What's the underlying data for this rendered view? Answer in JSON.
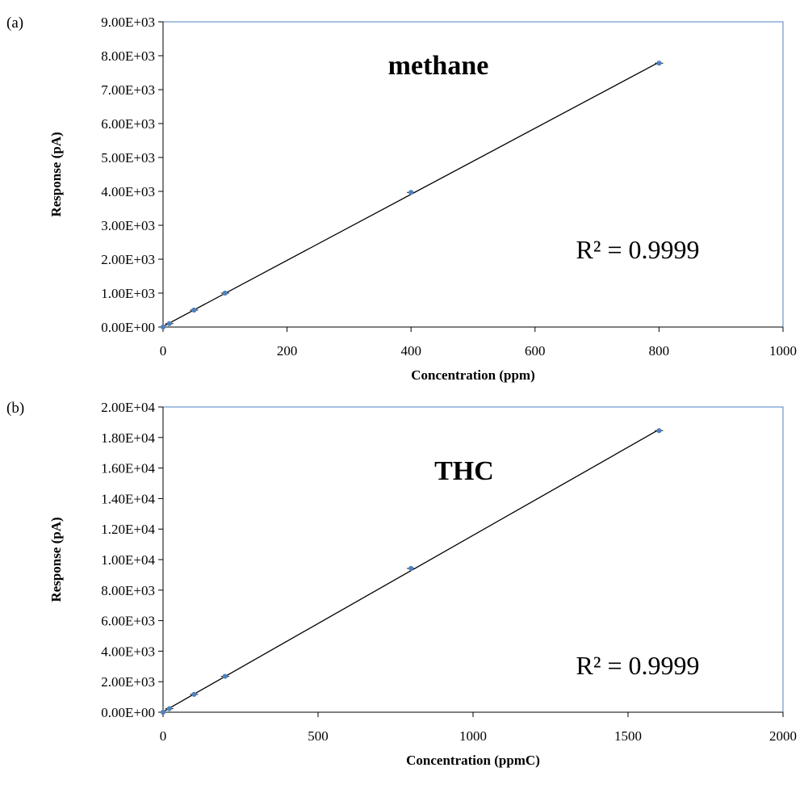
{
  "chart_data": [
    {
      "type": "scatter",
      "panel_label": "(a)",
      "title": "methane",
      "xlabel": "Concentration (ppm)",
      "ylabel": "Response (pA)",
      "xlim": [
        0,
        1000
      ],
      "ylim": [
        0,
        9000
      ],
      "xticks": [
        "0",
        "200",
        "400",
        "600",
        "800",
        "1000"
      ],
      "yticks": [
        "0.00E+00",
        "1.00E+03",
        "2.00E+03",
        "3.00E+03",
        "4.00E+03",
        "5.00E+03",
        "6.00E+03",
        "7.00E+03",
        "8.00E+03",
        "9.00E+03"
      ],
      "grid": false,
      "trendline": "linear",
      "annotation": "R² = 0.9999",
      "series": [
        {
          "x": [
            0,
            10,
            50,
            100,
            400,
            800
          ],
          "y": [
            0,
            100,
            500,
            1000,
            3970,
            7780
          ]
        }
      ],
      "colors": {
        "marker": "#4f81bd",
        "line": "#000000",
        "plot_border": "#4f81bd"
      }
    },
    {
      "type": "scatter",
      "panel_label": "(b)",
      "title": "THC",
      "xlabel": "Concentration (ppmC)",
      "ylabel": "Response (pA)",
      "xlim": [
        0,
        2000
      ],
      "ylim": [
        0,
        20000
      ],
      "xticks": [
        "0",
        "500",
        "1000",
        "1500",
        "2000"
      ],
      "yticks": [
        "0.00E+00",
        "2.00E+03",
        "4.00E+03",
        "6.00E+03",
        "8.00E+03",
        "1.00E+04",
        "1.20E+04",
        "1.40E+04",
        "1.60E+04",
        "1.80E+04",
        "2.00E+04"
      ],
      "grid": false,
      "trendline": "linear",
      "annotation": "R² = 0.9999",
      "series": [
        {
          "x": [
            0,
            20,
            100,
            200,
            800,
            1600
          ],
          "y": [
            0,
            230,
            1170,
            2350,
            9420,
            18450
          ]
        }
      ],
      "colors": {
        "marker": "#4f81bd",
        "line": "#000000",
        "plot_border": "#4f81bd"
      }
    }
  ]
}
